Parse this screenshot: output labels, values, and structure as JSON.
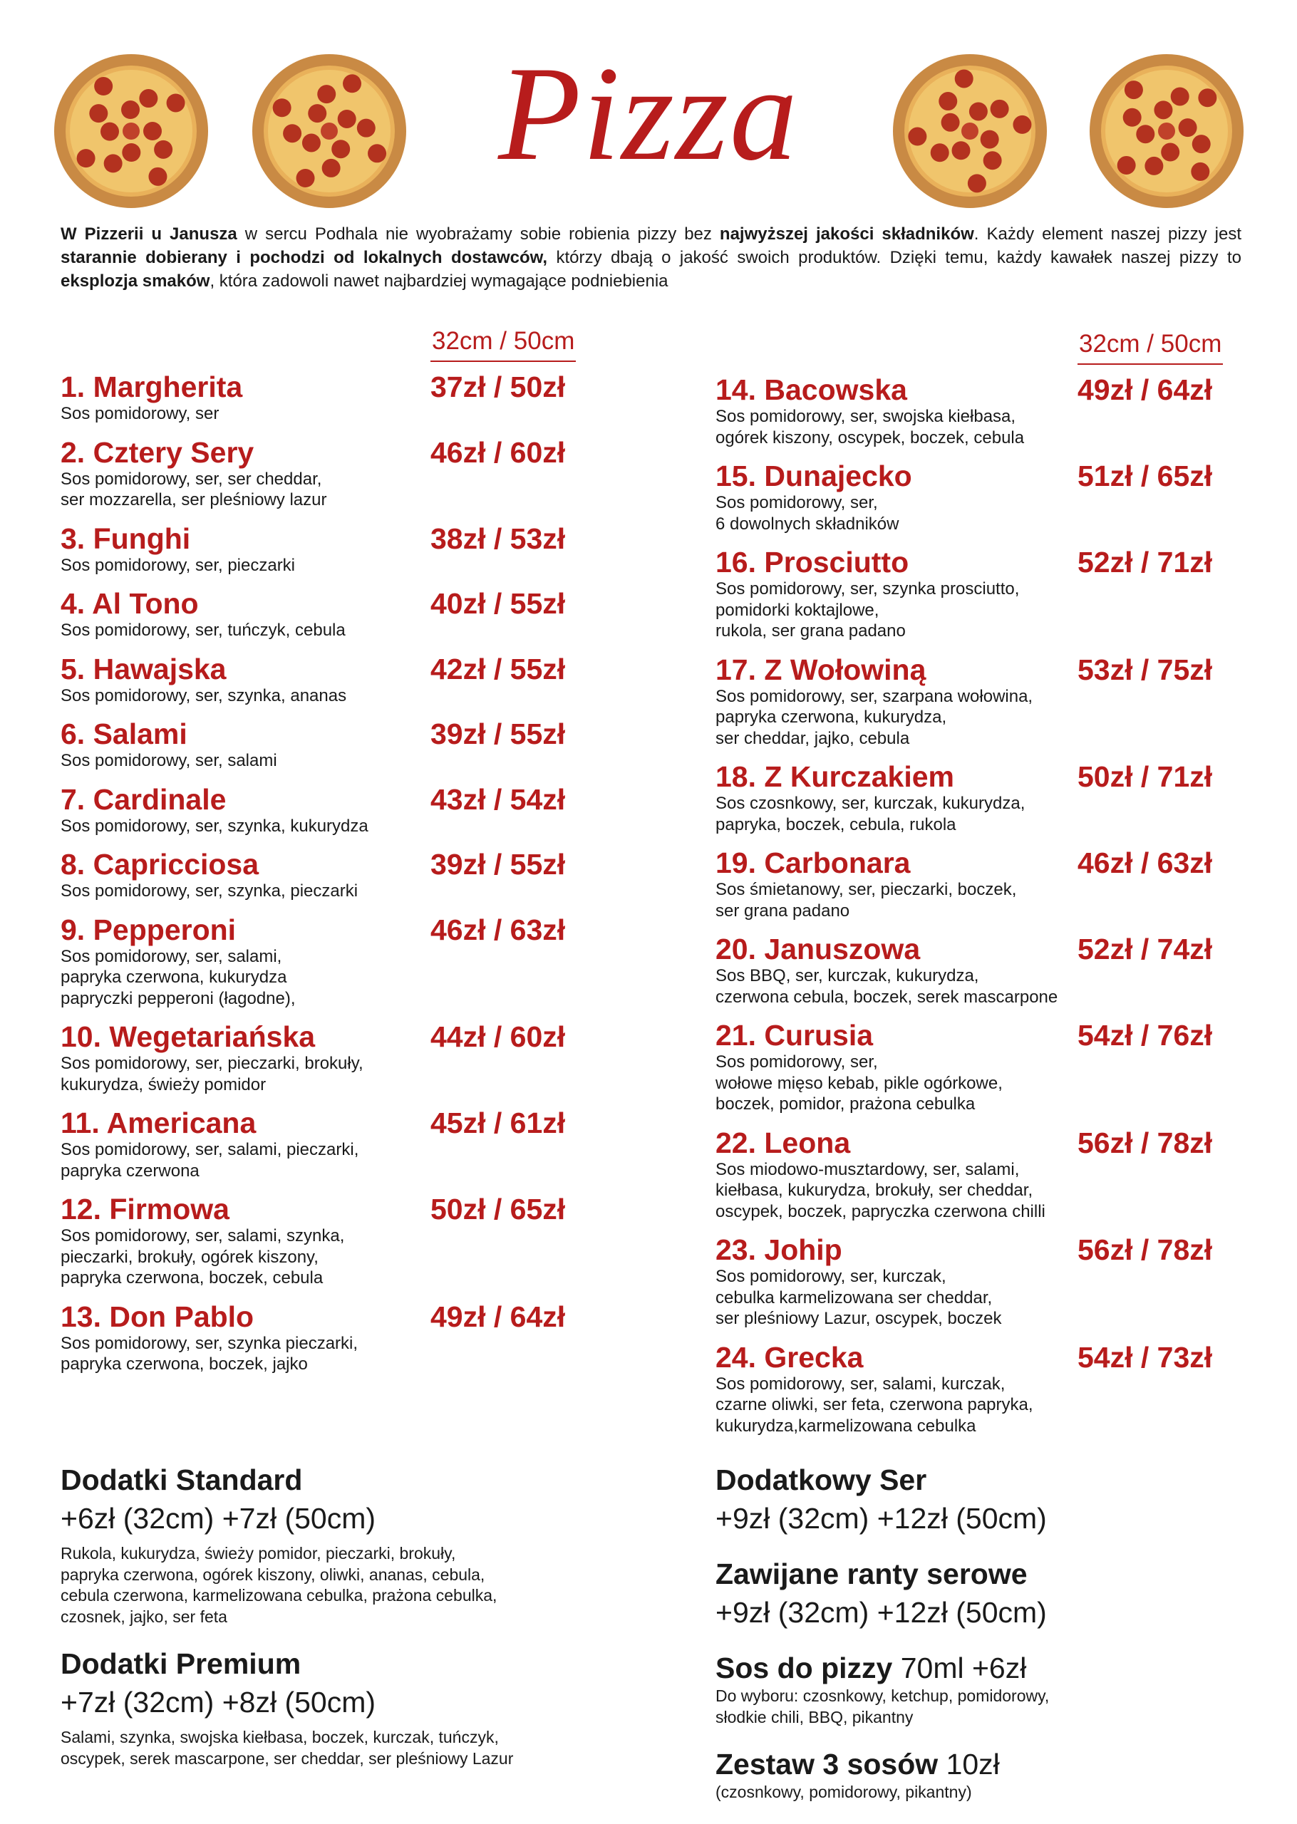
{
  "header": {
    "title": "Pizza",
    "intro": [
      "W Pizzerii u Janusza",
      " w sercu Podhala nie wyobrażamy sobie robienia pizzy bez ",
      "najwyższej jakości składników",
      ". Każdy element naszej pizzy jest ",
      "starannie dobierany i pochodzi od lokalnych dostawców,",
      " którzy dbają o jakość swoich produktów. Dzięki temu, każdy kawałek naszej pizzy to ",
      "eksplozja smaków",
      ", która zadowoli nawet najbardziej wymagające podniebienia"
    ]
  },
  "columns": [
    {
      "size_header": "32cm / 50cm",
      "pizzas": [
        {
          "name": "1. Margherita",
          "price": "37zł / 50zł",
          "ingredients": [
            "Sos pomidorowy, ser"
          ]
        },
        {
          "name": "2. Cztery Sery",
          "price": "46zł / 60zł",
          "ingredients": [
            "Sos pomidorowy, ser, ser cheddar,",
            "ser mozzarella, ser pleśniowy lazur"
          ]
        },
        {
          "name": "3. Funghi",
          "price": "38zł / 53zł",
          "ingredients": [
            "Sos pomidorowy, ser, pieczarki"
          ]
        },
        {
          "name": "4. Al Tono",
          "price": "40zł / 55zł",
          "ingredients": [
            "Sos pomidorowy, ser, tuńczyk, cebula"
          ]
        },
        {
          "name": "5. Hawajska",
          "price": "42zł / 55zł",
          "ingredients": [
            "Sos pomidorowy, ser, szynka, ananas"
          ]
        },
        {
          "name": "6. Salami",
          "price": "39zł / 55zł",
          "ingredients": [
            "Sos pomidorowy, ser, salami"
          ]
        },
        {
          "name": "7. Cardinale",
          "price": "43zł / 54zł",
          "ingredients": [
            "Sos pomidorowy, ser, szynka, kukurydza"
          ]
        },
        {
          "name": "8. Capricciosa",
          "price": "39zł / 55zł",
          "ingredients": [
            "Sos pomidorowy, ser, szynka, pieczarki"
          ]
        },
        {
          "name": "9. Pepperoni",
          "price": "46zł / 63zł",
          "ingredients": [
            "Sos pomidorowy, ser, salami,",
            "papryka czerwona, kukurydza",
            "papryczki pepperoni (łagodne),"
          ]
        },
        {
          "name": "10. Wegetariańska",
          "price": "44zł / 60zł",
          "ingredients": [
            "Sos pomidorowy, ser, pieczarki, brokuły,",
            "kukurydza, świeży pomidor"
          ]
        },
        {
          "name": "11. Americana",
          "price": "45zł / 61zł",
          "ingredients": [
            "Sos pomidorowy, ser, salami, pieczarki,",
            "papryka czerwona"
          ]
        },
        {
          "name": "12. Firmowa",
          "price": "50zł / 65zł",
          "ingredients": [
            "Sos pomidorowy, ser, salami, szynka,",
            "pieczarki, brokuły, ogórek kiszony,",
            "papryka czerwona, boczek, cebula"
          ]
        },
        {
          "name": "13. Don Pablo",
          "price": "49zł / 64zł",
          "ingredients": [
            "Sos pomidorowy, ser, szynka pieczarki,",
            "papryka czerwona, boczek, jajko"
          ]
        }
      ]
    },
    {
      "size_header": "32cm / 50cm",
      "pizzas": [
        {
          "name": "14. Bacowska",
          "price": "49zł / 64zł",
          "ingredients": [
            "Sos pomidorowy, ser, swojska kiełbasa,",
            "ogórek kiszony, oscypek, boczek, cebula"
          ]
        },
        {
          "name": "15. Dunajecko",
          "price": "51zł / 65zł",
          "ingredients": [
            "Sos pomidorowy, ser,",
            "6 dowolnych składników"
          ]
        },
        {
          "name": "16. Prosciutto",
          "price": "52zł / 71zł",
          "ingredients": [
            "Sos pomidorowy, ser, szynka prosciutto,",
            "pomidorki koktajlowe,",
            "rukola, ser grana padano"
          ]
        },
        {
          "name": "17. Z Wołowiną",
          "price": "53zł / 75zł",
          "ingredients": [
            "Sos pomidorowy, ser, szarpana wołowina,",
            "papryka czerwona, kukurydza,",
            "ser cheddar, jajko, cebula"
          ]
        },
        {
          "name": "18. Z Kurczakiem",
          "price": "50zł / 71zł",
          "ingredients": [
            "Sos czosnkowy, ser, kurczak, kukurydza,",
            "papryka, boczek, cebula, rukola"
          ]
        },
        {
          "name": "19. Carbonara",
          "price": "46zł / 63zł",
          "ingredients": [
            "Sos śmietanowy, ser, pieczarki, boczek,",
            "ser grana padano"
          ]
        },
        {
          "name": "20. Januszowa",
          "price": "52zł / 74zł",
          "ingredients": [
            "Sos BBQ, ser, kurczak, kukurydza,",
            "czerwona cebula, boczek, serek mascarpone"
          ]
        },
        {
          "name": "21. Curusia",
          "price": "54zł / 76zł",
          "ingredients": [
            "Sos pomidorowy, ser,",
            "wołowe mięso kebab, pikle ogórkowe,",
            "boczek, pomidor, prażona cebulka"
          ]
        },
        {
          "name": "22. Leona",
          "price": "56zł / 78zł",
          "ingredients": [
            "Sos miodowo-musztardowy, ser, salami,",
            "kiełbasa, kukurydza, brokuły, ser cheddar,",
            "oscypek, boczek, papryczka czerwona chilli"
          ]
        },
        {
          "name": "23. Johip",
          "price": "56zł / 78zł",
          "ingredients": [
            "Sos pomidorowy, ser, kurczak,",
            "cebulka karmelizowana ser cheddar,",
            "ser pleśniowy Lazur, oscypek, boczek"
          ]
        },
        {
          "name": "24. Grecka",
          "price": "54zł / 73zł",
          "ingredients": [
            "Sos pomidorowy, ser, salami, kurczak,",
            "czarne oliwki, ser feta, czerwona papryka,",
            "kukurydza,karmelizowana cebulka"
          ]
        }
      ]
    }
  ],
  "extras": [
    [
      {
        "title": "Dodatki Standard",
        "price": "+6zł (32cm) +7zł (50cm)",
        "details": [
          "Rukola, kukurydza, świeży pomidor, pieczarki, brokuły,",
          "papryka czerwona, ogórek kiszony, oliwki, ananas, cebula,",
          "cebula czerwona, karmelizowana cebulka, prażona cebulka,",
          "czosnek, jajko, ser feta"
        ]
      },
      {
        "title": "Dodatki Premium",
        "price": "+7zł (32cm) +8zł (50cm)",
        "details": [
          "Salami, szynka, swojska kiełbasa, boczek, kurczak, tuńczyk,",
          "oscypek, serek mascarpone, ser cheddar, ser pleśniowy Lazur"
        ]
      }
    ],
    [
      {
        "title": "Dodatkowy Ser",
        "price": "+9zł (32cm) +12zł (50cm)",
        "details": []
      },
      {
        "title": "Zawijane ranty serowe",
        "price": "+9zł (32cm) +12zł (50cm)",
        "details": []
      },
      {
        "title": "Sos do pizzy",
        "price": "70ml +6zł",
        "price_inline": true,
        "details": [
          "Do wyboru: czosnkowy, ketchup, pomidorowy,",
          "słodkie chili, BBQ, pikantny"
        ]
      },
      {
        "title": "Zestaw 3 sosów",
        "price": "10zł",
        "price_inline": true,
        "details": [
          "(czosnkowy, pomidorowy, pikantny)"
        ]
      }
    ]
  ]
}
